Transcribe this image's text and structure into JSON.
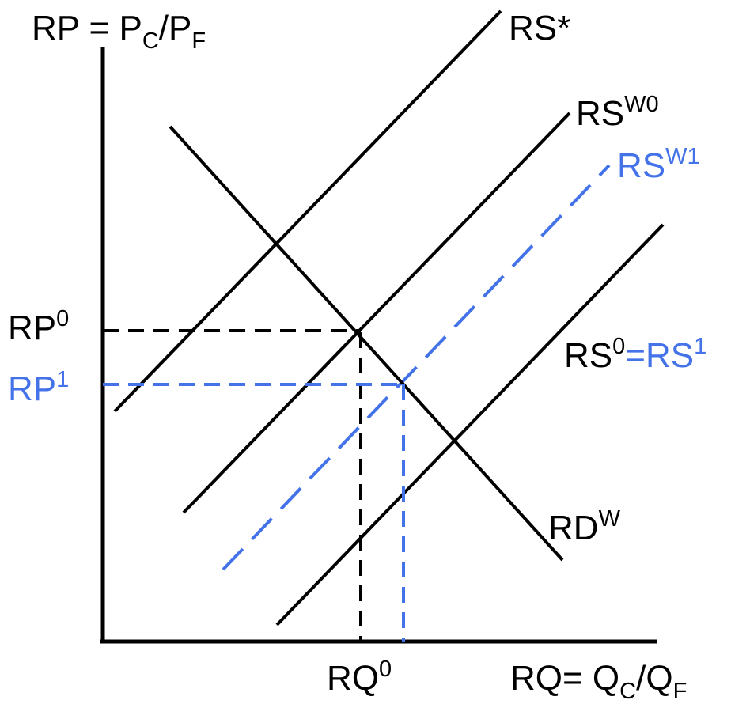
{
  "colors": {
    "ink": "#000000",
    "highlight": "#4472e8",
    "background": "#ffffff"
  },
  "axes": {
    "y_label": {
      "main": "RP = P",
      "sub1": "C",
      "slash": "/P",
      "sub2": "F"
    },
    "x_label": {
      "main": "RQ= Q",
      "sub1": "C",
      "slash": "/Q",
      "sub2": "F"
    }
  },
  "ticks": {
    "rp0": {
      "base": "RP",
      "sup": "0"
    },
    "rp1": {
      "base": "RP",
      "sup": "1"
    },
    "rq0": {
      "base": "RQ",
      "sup": "0"
    }
  },
  "curves": {
    "rs_star": {
      "base": "RS",
      "suffix": "*"
    },
    "rs_w0": {
      "base": "RS",
      "sup": "W0"
    },
    "rs_w1": {
      "base": "RS",
      "sup": "W1"
    },
    "rd_w": {
      "base": "RD",
      "sup": "W"
    },
    "rs0_rs1": {
      "base0": "RS",
      "sup0": "0",
      "eq": "=RS",
      "sup1": "1"
    }
  }
}
